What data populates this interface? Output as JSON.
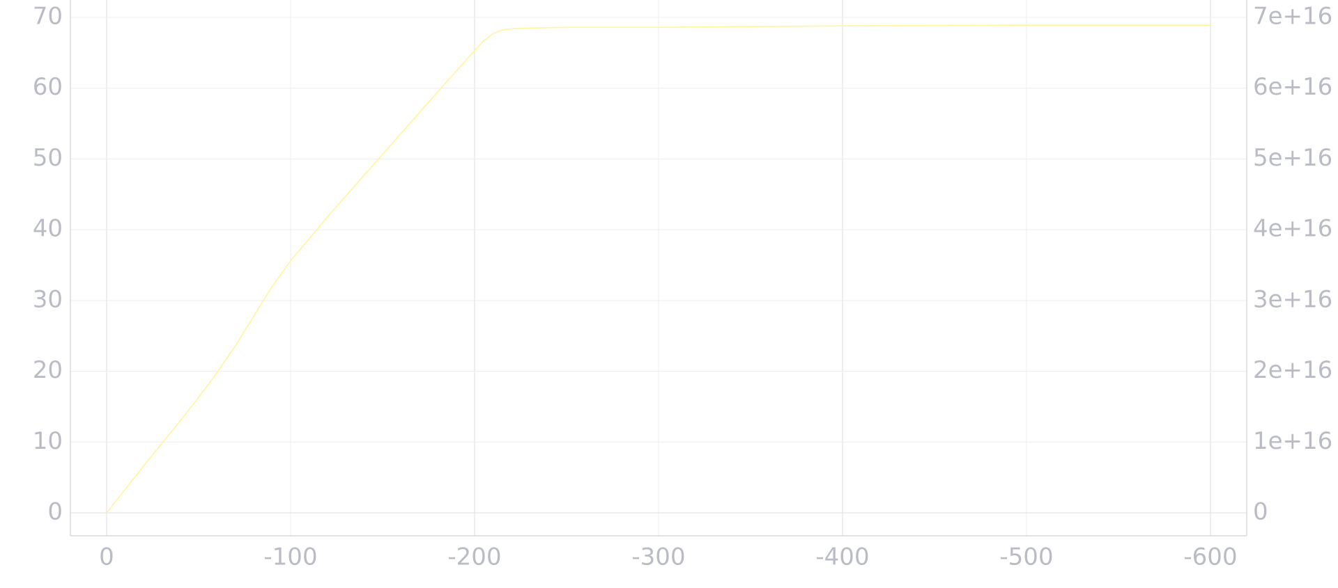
{
  "chart_data": {
    "type": "line",
    "title": "",
    "xlabel": "",
    "ylabel": "",
    "y2label": "",
    "grid": true,
    "x_axis": {
      "range": [
        0,
        -600
      ],
      "ticks": [
        0,
        -100,
        -200,
        -300,
        -400,
        -500,
        -600
      ],
      "tick_labels": [
        "0",
        "-100",
        "-200",
        "-300",
        "-400",
        "-500",
        "-600"
      ]
    },
    "y_axis_left": {
      "range": [
        0,
        70
      ],
      "ticks": [
        0,
        10,
        20,
        30,
        40,
        50,
        60,
        70
      ],
      "tick_labels": [
        "0",
        "10",
        "20",
        "30",
        "40",
        "50",
        "60",
        "70"
      ]
    },
    "y_axis_right": {
      "range": [
        0,
        7e+16
      ],
      "ticks": [
        0,
        1e+16,
        2e+16,
        3e+16,
        4e+16,
        5e+16,
        6e+16,
        7e+16
      ],
      "tick_labels": [
        "0",
        "1e+16",
        "2e+16",
        "3e+16",
        "4e+16",
        "5e+16",
        "6e+16",
        "7e+16"
      ]
    },
    "series": [
      {
        "color": "#fff59d",
        "x": [
          0,
          -10,
          -20,
          -30,
          -40,
          -50,
          -60,
          -70,
          -80,
          -90,
          -100,
          -120,
          -140,
          -160,
          -180,
          -200,
          -205,
          -210,
          -215,
          -220,
          -230,
          -250,
          -300,
          -400,
          -500,
          -600
        ],
        "y": [
          0,
          3.3,
          6.6,
          9.8,
          13.0,
          16.3,
          19.8,
          23.6,
          27.8,
          32.0,
          35.6,
          41.8,
          47.7,
          53.6,
          59.5,
          65.3,
          66.7,
          67.7,
          68.2,
          68.4,
          68.5,
          68.6,
          68.6,
          68.8,
          68.9,
          68.9
        ]
      }
    ]
  }
}
